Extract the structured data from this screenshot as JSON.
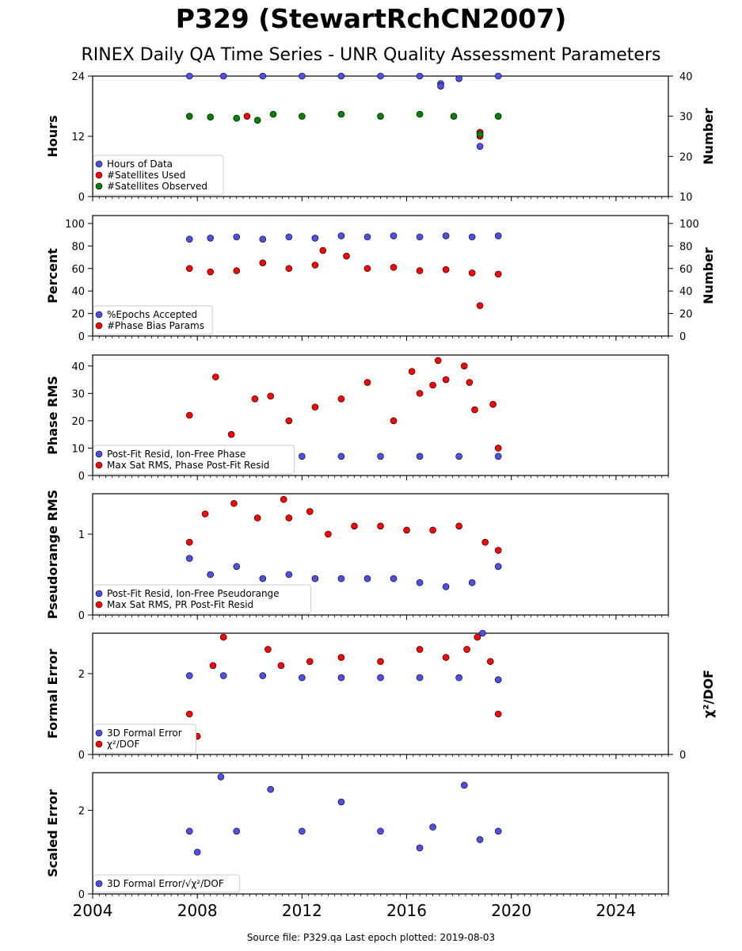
{
  "title": "P329 (StewartRchCN2007)",
  "subtitle": "RINEX Daily QA Time Series - UNR Quality Assessment Parameters",
  "footer": "Source file: P329.qa Last epoch plotted: 2019-08-03",
  "colors": {
    "blue": "#4f4fe6",
    "red": "#ff0000",
    "green": "#008000",
    "edge": "#000000"
  },
  "chart_data": [
    {
      "type": "scatter",
      "ylabel": "Hours",
      "ylabel_right": "Number",
      "xlim": [
        2004,
        2026
      ],
      "ylim": [
        0,
        24
      ],
      "yticks": [
        0,
        12,
        24
      ],
      "ylim_right": [
        10,
        40
      ],
      "yticks_right": [
        10,
        20,
        30,
        40
      ],
      "legend": "lower-left",
      "series": [
        {
          "name": "Hours of Data",
          "color": "#4f4fe6",
          "axis": "left",
          "points": [
            [
              2007.7,
              24
            ],
            [
              2009,
              24
            ],
            [
              2010.5,
              24
            ],
            [
              2012,
              24
            ],
            [
              2013.5,
              24
            ],
            [
              2015,
              24
            ],
            [
              2016.5,
              24
            ],
            [
              2017.3,
              22.5
            ],
            [
              2017.3,
              22
            ],
            [
              2018.0,
              23.5
            ],
            [
              2018.8,
              10
            ],
            [
              2019.5,
              24
            ]
          ]
        },
        {
          "name": "#Satellites Used",
          "color": "#ff0000",
          "axis": "right",
          "points": [
            [
              2009.9,
              30
            ],
            [
              2018.8,
              26
            ],
            [
              2018.8,
              25
            ]
          ]
        },
        {
          "name": "#Satellites Observed",
          "color": "#008000",
          "axis": "right",
          "points": [
            [
              2007.7,
              30
            ],
            [
              2008.5,
              29.8
            ],
            [
              2009.5,
              29.5
            ],
            [
              2010.3,
              29
            ],
            [
              2010.9,
              30.5
            ],
            [
              2012,
              30
            ],
            [
              2013.5,
              30.5
            ],
            [
              2015,
              30
            ],
            [
              2016.5,
              30.5
            ],
            [
              2017.8,
              30
            ],
            [
              2018.8,
              25.5
            ],
            [
              2019.5,
              30
            ]
          ]
        }
      ]
    },
    {
      "type": "scatter",
      "ylabel": "Percent",
      "ylabel_right": "Number",
      "xlim": [
        2004,
        2026
      ],
      "ylim": [
        0,
        107
      ],
      "yticks": [
        0,
        20,
        40,
        60,
        80,
        100
      ],
      "ylim_right": [
        0,
        107
      ],
      "yticks_right": [
        0,
        20,
        40,
        60,
        80,
        100
      ],
      "legend": "lower-left",
      "series": [
        {
          "name": "%Epochs Accepted",
          "color": "#4f4fe6",
          "axis": "left",
          "points": [
            [
              2007.7,
              86
            ],
            [
              2008.5,
              87
            ],
            [
              2009.5,
              88
            ],
            [
              2010.5,
              86
            ],
            [
              2011.5,
              88
            ],
            [
              2012.5,
              87
            ],
            [
              2013.5,
              89
            ],
            [
              2014.5,
              88
            ],
            [
              2015.5,
              89
            ],
            [
              2016.5,
              88
            ],
            [
              2017.5,
              89
            ],
            [
              2018.5,
              88
            ],
            [
              2019.5,
              89
            ]
          ]
        },
        {
          "name": "#Phase Bias Params",
          "color": "#ff0000",
          "axis": "right",
          "points": [
            [
              2007.7,
              60
            ],
            [
              2008.5,
              57
            ],
            [
              2009.5,
              58
            ],
            [
              2010.5,
              65
            ],
            [
              2011.5,
              60
            ],
            [
              2012.5,
              63
            ],
            [
              2012.8,
              76
            ],
            [
              2013.7,
              71
            ],
            [
              2014.5,
              60
            ],
            [
              2015.5,
              61
            ],
            [
              2016.5,
              58
            ],
            [
              2017.5,
              59
            ],
            [
              2018.5,
              56
            ],
            [
              2018.8,
              27
            ],
            [
              2019.5,
              55
            ]
          ]
        }
      ]
    },
    {
      "type": "scatter",
      "ylabel": "Phase RMS",
      "xlim": [
        2004,
        2026
      ],
      "ylim": [
        0,
        44
      ],
      "yticks": [
        0,
        10,
        20,
        30,
        40
      ],
      "legend": "lower-left",
      "series": [
        {
          "name": "Post-Fit Resid, Ion-Free Phase",
          "color": "#4f4fe6",
          "points": [
            [
              2007.7,
              7
            ],
            [
              2009,
              7
            ],
            [
              2010.5,
              7
            ],
            [
              2012,
              7
            ],
            [
              2013.5,
              7
            ],
            [
              2015,
              7
            ],
            [
              2016.5,
              7
            ],
            [
              2018,
              7
            ],
            [
              2019.5,
              7
            ]
          ]
        },
        {
          "name": "Max Sat RMS, Phase Post-Fit Resid",
          "color": "#ff0000",
          "points": [
            [
              2007.7,
              22
            ],
            [
              2008.7,
              36
            ],
            [
              2009.3,
              15
            ],
            [
              2010.2,
              28
            ],
            [
              2010.8,
              29
            ],
            [
              2011.5,
              20
            ],
            [
              2012.5,
              25
            ],
            [
              2013.5,
              28
            ],
            [
              2014.5,
              34
            ],
            [
              2015.5,
              20
            ],
            [
              2016.2,
              38
            ],
            [
              2016.5,
              30
            ],
            [
              2017,
              33
            ],
            [
              2017.2,
              42
            ],
            [
              2017.5,
              35
            ],
            [
              2018.2,
              40
            ],
            [
              2018.4,
              34
            ],
            [
              2018.6,
              24
            ],
            [
              2019.3,
              26
            ],
            [
              2019.5,
              10
            ]
          ]
        }
      ]
    },
    {
      "type": "scatter",
      "ylabel": "Pseudorange RMS",
      "xlim": [
        2004,
        2026
      ],
      "ylim": [
        0,
        1.5
      ],
      "yticks": [
        0,
        1
      ],
      "legend": "lower-left",
      "series": [
        {
          "name": "Post-Fit Resid, Ion-Free Pseudorange",
          "color": "#4f4fe6",
          "points": [
            [
              2007.7,
              0.7
            ],
            [
              2008.5,
              0.5
            ],
            [
              2009.5,
              0.6
            ],
            [
              2010.5,
              0.45
            ],
            [
              2011.5,
              0.5
            ],
            [
              2012.5,
              0.45
            ],
            [
              2013.5,
              0.45
            ],
            [
              2014.5,
              0.45
            ],
            [
              2015.5,
              0.45
            ],
            [
              2016.5,
              0.4
            ],
            [
              2017.5,
              0.35
            ],
            [
              2018.5,
              0.4
            ],
            [
              2019.5,
              0.6
            ]
          ]
        },
        {
          "name": "Max Sat RMS, PR Post-Fit Resid",
          "color": "#ff0000",
          "points": [
            [
              2007.7,
              0.9
            ],
            [
              2008.3,
              1.25
            ],
            [
              2009.4,
              1.38
            ],
            [
              2010.3,
              1.2
            ],
            [
              2011.3,
              1.43
            ],
            [
              2011.5,
              1.2
            ],
            [
              2012.3,
              1.28
            ],
            [
              2013,
              1.0
            ],
            [
              2014,
              1.1
            ],
            [
              2015,
              1.1
            ],
            [
              2016,
              1.05
            ],
            [
              2017,
              1.05
            ],
            [
              2018,
              1.1
            ],
            [
              2019,
              0.9
            ],
            [
              2019.5,
              0.8
            ]
          ]
        }
      ]
    },
    {
      "type": "scatter",
      "ylabel": "Formal Error",
      "ylabel_right": "χ²/DOF",
      "xlim": [
        2004,
        2026
      ],
      "ylim": [
        0,
        3.0
      ],
      "yticks": [
        0,
        2
      ],
      "ylim_right": [
        0,
        3.0
      ],
      "yticks_right": [
        0
      ],
      "legend": "lower-left",
      "series": [
        {
          "name": "3D Formal Error",
          "color": "#4f4fe6",
          "axis": "left",
          "points": [
            [
              2007.7,
              1.95
            ],
            [
              2009,
              1.95
            ],
            [
              2010.5,
              1.95
            ],
            [
              2012,
              1.9
            ],
            [
              2013.5,
              1.9
            ],
            [
              2015,
              1.9
            ],
            [
              2016.5,
              1.9
            ],
            [
              2018,
              1.9
            ],
            [
              2018.9,
              3.0
            ],
            [
              2019.5,
              1.85
            ]
          ]
        },
        {
          "name": "χ²/DOF",
          "color": "#ff0000",
          "axis": "right",
          "points": [
            [
              2007.7,
              1.0
            ],
            [
              2008.0,
              0.45
            ],
            [
              2008.6,
              2.2
            ],
            [
              2009.0,
              2.9
            ],
            [
              2010.7,
              2.6
            ],
            [
              2011.2,
              2.2
            ],
            [
              2012.3,
              2.3
            ],
            [
              2013.5,
              2.4
            ],
            [
              2015.0,
              2.3
            ],
            [
              2016.5,
              2.6
            ],
            [
              2017.5,
              2.4
            ],
            [
              2018.3,
              2.6
            ],
            [
              2018.7,
              2.9
            ],
            [
              2019.2,
              2.3
            ],
            [
              2019.5,
              1.0
            ]
          ]
        }
      ]
    },
    {
      "type": "scatter",
      "ylabel": "Scaled Error",
      "xlim": [
        2004,
        2026
      ],
      "ylim": [
        0,
        2.9
      ],
      "yticks": [
        0,
        2
      ],
      "legend": "lower-left",
      "series": [
        {
          "name": "3D Formal Error/√χ²/DOF",
          "color": "#4f4fe6",
          "points": [
            [
              2007.7,
              1.5
            ],
            [
              2008.0,
              1.0
            ],
            [
              2008.9,
              2.8
            ],
            [
              2009.5,
              1.5
            ],
            [
              2010.8,
              2.5
            ],
            [
              2012,
              1.5
            ],
            [
              2013.5,
              2.2
            ],
            [
              2015,
              1.5
            ],
            [
              2016.5,
              1.1
            ],
            [
              2017,
              1.6
            ],
            [
              2018.2,
              2.6
            ],
            [
              2018.8,
              1.3
            ],
            [
              2019.5,
              1.5
            ]
          ]
        }
      ]
    }
  ]
}
